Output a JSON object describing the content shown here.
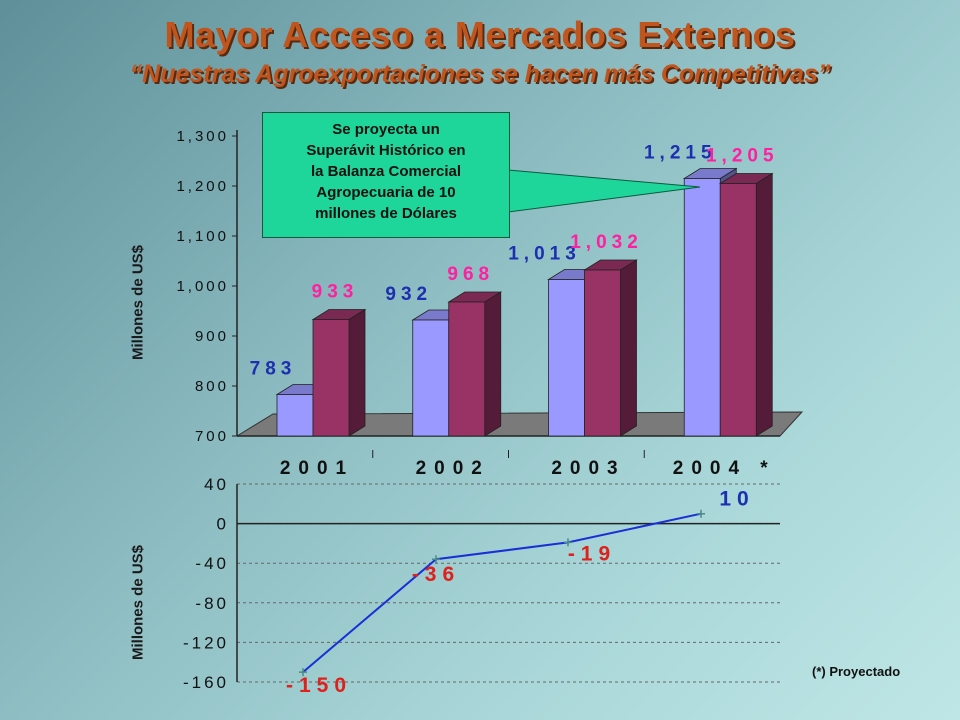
{
  "title": "Mayor Acceso a Mercados Externos",
  "subtitle": "“Nuestras Agroexportaciones se hacen más Competitivas”",
  "callout": {
    "lines": [
      "Se proyecta un",
      "Superávit Histórico en",
      "la Balanza Comercial",
      "Agropecuaria de 10",
      "millones de Dólares"
    ]
  },
  "footnote": "(*) Proyectado",
  "colors": {
    "series1": "#9999ff",
    "series2": "#993366",
    "label1": "#1c2fb0",
    "label2": "#ff1fa0",
    "line": "#1a2fd6",
    "line_labels": "#e0201a",
    "callout_bg": "#1fd69a"
  },
  "chart_data": [
    {
      "type": "bar",
      "categories": [
        "2001",
        "2002",
        "2003",
        "2004 *"
      ],
      "series": [
        {
          "values": [
            783,
            932,
            1013,
            1215
          ],
          "labels": [
            "783",
            "932",
            "1,013",
            "1,215"
          ]
        },
        {
          "values": [
            933,
            968,
            1032,
            1205
          ],
          "labels": [
            "933",
            "968",
            "1,032",
            "1,205"
          ]
        }
      ],
      "ylabel": "Millones de US$",
      "ylim": [
        700,
        1300
      ],
      "yticks": [
        "700",
        "800",
        "900",
        "1,000",
        "1,100",
        "1,200",
        "1,300"
      ],
      "grid": false
    },
    {
      "type": "line",
      "categories": [
        "2001",
        "2002",
        "2003",
        "2004 *"
      ],
      "series": [
        {
          "values": [
            -150,
            -36,
            -19,
            10
          ],
          "labels": [
            "-150",
            "-36",
            "-19",
            "10"
          ]
        }
      ],
      "ylabel": "Millones de US$",
      "ylim": [
        -160,
        40
      ],
      "yticks": [
        "40",
        "0",
        "-40",
        "-80",
        "-120",
        "-160"
      ],
      "grid": true
    }
  ]
}
